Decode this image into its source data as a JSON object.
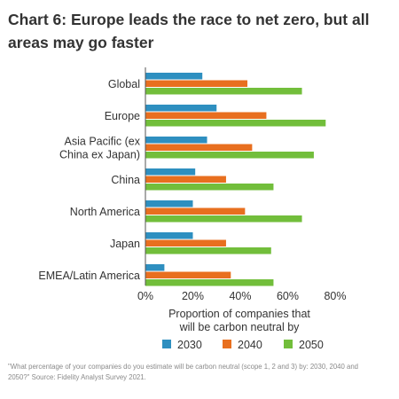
{
  "chart_data": {
    "type": "bar",
    "orientation": "horizontal",
    "title": "Chart 6: Europe leads the race to net zero, but all areas may go faster",
    "categories": [
      [
        "Global"
      ],
      [
        "Europe"
      ],
      [
        "Asia Pacific (ex",
        "China ex Japan)"
      ],
      [
        "China"
      ],
      [
        "North America"
      ],
      [
        "Japan"
      ],
      [
        "EMEA/Latin America"
      ]
    ],
    "series": [
      {
        "name": "2030",
        "color": "#2e8fc0",
        "values": [
          24,
          30,
          26,
          21,
          20,
          20,
          8
        ]
      },
      {
        "name": "2040",
        "color": "#e86f1f",
        "values": [
          43,
          51,
          45,
          34,
          42,
          34,
          36
        ]
      },
      {
        "name": "2050",
        "color": "#72be3b",
        "values": [
          66,
          76,
          71,
          54,
          66,
          53,
          54
        ]
      }
    ],
    "xlim": [
      0,
      80
    ],
    "xticks": [
      "0%",
      "20%",
      "40%",
      "60%",
      "80%"
    ],
    "xlabel": [
      "Proportion of companies that",
      "will be carbon neutral by"
    ],
    "ylabel": "",
    "grid": false,
    "legend_position": "bottom"
  },
  "footnote": "\"What percentage of your companies do you estimate will be carbon neutral (scope 1, 2 and 3) by: 2030, 2040 and 2050?\" Source: Fidelity Analyst Survey 2021."
}
